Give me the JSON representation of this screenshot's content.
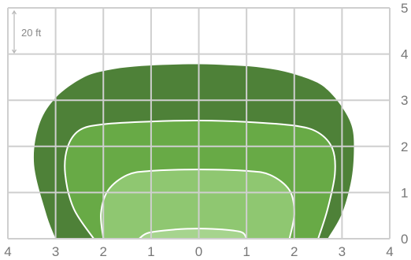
{
  "chart_data": {
    "type": "area",
    "title": "",
    "xlabel": "",
    "ylabel": "",
    "x_ticks": [
      "4",
      "3",
      "2",
      "1",
      "0",
      "1",
      "2",
      "3",
      "4"
    ],
    "y_ticks": [
      "0",
      "1",
      "2",
      "3",
      "4",
      "5"
    ],
    "x_range": [
      -4,
      4
    ],
    "y_range": [
      0,
      5
    ],
    "grid": true,
    "scale_note": "20 ft",
    "series": [
      {
        "fill": "#4e8138",
        "stroke": "none",
        "points": [
          [
            -3.0,
            0
          ],
          [
            -3.2,
            0.55
          ],
          [
            -3.45,
            1.6
          ],
          [
            -3.35,
            2.45
          ],
          [
            -3.0,
            3.05
          ],
          [
            -2.4,
            3.5
          ],
          [
            -1.8,
            3.67
          ],
          [
            -1.2,
            3.74
          ],
          [
            -0.6,
            3.77
          ],
          [
            0,
            3.78
          ],
          [
            0.6,
            3.76
          ],
          [
            1.2,
            3.72
          ],
          [
            1.8,
            3.62
          ],
          [
            2.4,
            3.42
          ],
          [
            2.7,
            3.22
          ],
          [
            3.0,
            2.85
          ],
          [
            3.2,
            2.45
          ],
          [
            3.25,
            2.0
          ],
          [
            3.2,
            1.3
          ],
          [
            3.0,
            0.55
          ],
          [
            2.7,
            0
          ]
        ]
      },
      {
        "fill": "#68aa46",
        "stroke": "#ffffff",
        "points": [
          [
            -2.2,
            0
          ],
          [
            -2.62,
            0.65
          ],
          [
            -2.8,
            1.4
          ],
          [
            -2.75,
            1.98
          ],
          [
            -2.5,
            2.35
          ],
          [
            -2.0,
            2.48
          ],
          [
            -1.0,
            2.54
          ],
          [
            0,
            2.56
          ],
          [
            1.0,
            2.53
          ],
          [
            2.0,
            2.45
          ],
          [
            2.5,
            2.3
          ],
          [
            2.8,
            1.95
          ],
          [
            2.85,
            1.4
          ],
          [
            2.7,
            0.65
          ],
          [
            2.5,
            0
          ]
        ]
      },
      {
        "fill": "#8fc771",
        "stroke": "#ffffff",
        "points": [
          [
            -2.0,
            0
          ],
          [
            -2.05,
            0.55
          ],
          [
            -1.9,
            1.05
          ],
          [
            -1.5,
            1.38
          ],
          [
            -1.0,
            1.47
          ],
          [
            0,
            1.5
          ],
          [
            1.0,
            1.47
          ],
          [
            1.5,
            1.38
          ],
          [
            1.9,
            1.05
          ],
          [
            2.0,
            0.55
          ],
          [
            1.9,
            0
          ]
        ]
      },
      {
        "fill": "#a6d48e",
        "stroke": "#ffffff",
        "points": [
          [
            -1.25,
            0
          ],
          [
            -1.05,
            0.13
          ],
          [
            -0.5,
            0.2
          ],
          [
            0,
            0.22
          ],
          [
            0.5,
            0.2
          ],
          [
            0.9,
            0.14
          ],
          [
            1.0,
            0
          ]
        ]
      }
    ]
  }
}
